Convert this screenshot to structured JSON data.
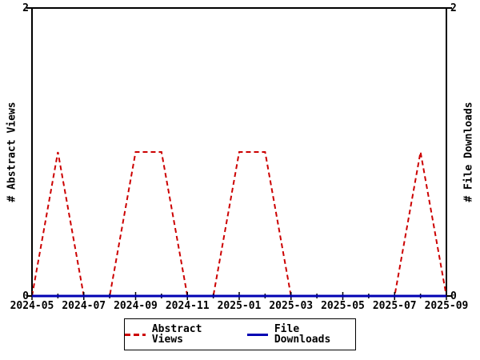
{
  "chart_data": {
    "type": "line",
    "title": "",
    "x_categories": [
      "2024-05",
      "2024-06",
      "2024-07",
      "2024-08",
      "2024-09",
      "2024-10",
      "2024-11",
      "2024-12",
      "2025-01",
      "2025-02",
      "2025-03",
      "2025-04",
      "2025-05",
      "2025-06",
      "2025-07",
      "2025-08",
      "2025-09"
    ],
    "x_tick_labels": [
      "2024-05",
      "2024-07",
      "2024-09",
      "2024-11",
      "2025-01",
      "2025-03",
      "2025-05",
      "2025-07",
      "2025-09"
    ],
    "series": [
      {
        "name": "Abstract Views",
        "color": "#cc0000",
        "dash": "dashed",
        "width": 2,
        "values": [
          0,
          1,
          0,
          0,
          1,
          1,
          0,
          0,
          1,
          1,
          0,
          0,
          0,
          0,
          0,
          1,
          0
        ]
      },
      {
        "name": "File Downloads",
        "color": "#0000b3",
        "dash": "solid",
        "width": 3,
        "values": [
          0,
          0,
          0,
          0,
          0,
          0,
          0,
          0,
          0,
          0,
          0,
          0,
          0,
          0,
          0,
          0,
          0
        ]
      }
    ],
    "y_left": {
      "label": "# Abstract Views",
      "min": 0,
      "max": 2,
      "tick_labels": [
        "0",
        "2"
      ]
    },
    "y_right": {
      "label": "# File Downloads",
      "min": 0,
      "max": 2,
      "tick_labels": [
        "0",
        "2"
      ]
    },
    "legend": {
      "position": "bottom",
      "items": [
        "Abstract Views",
        "File Downloads"
      ]
    },
    "grid": false,
    "axis_color": "#000000",
    "background": "#ffffff"
  }
}
